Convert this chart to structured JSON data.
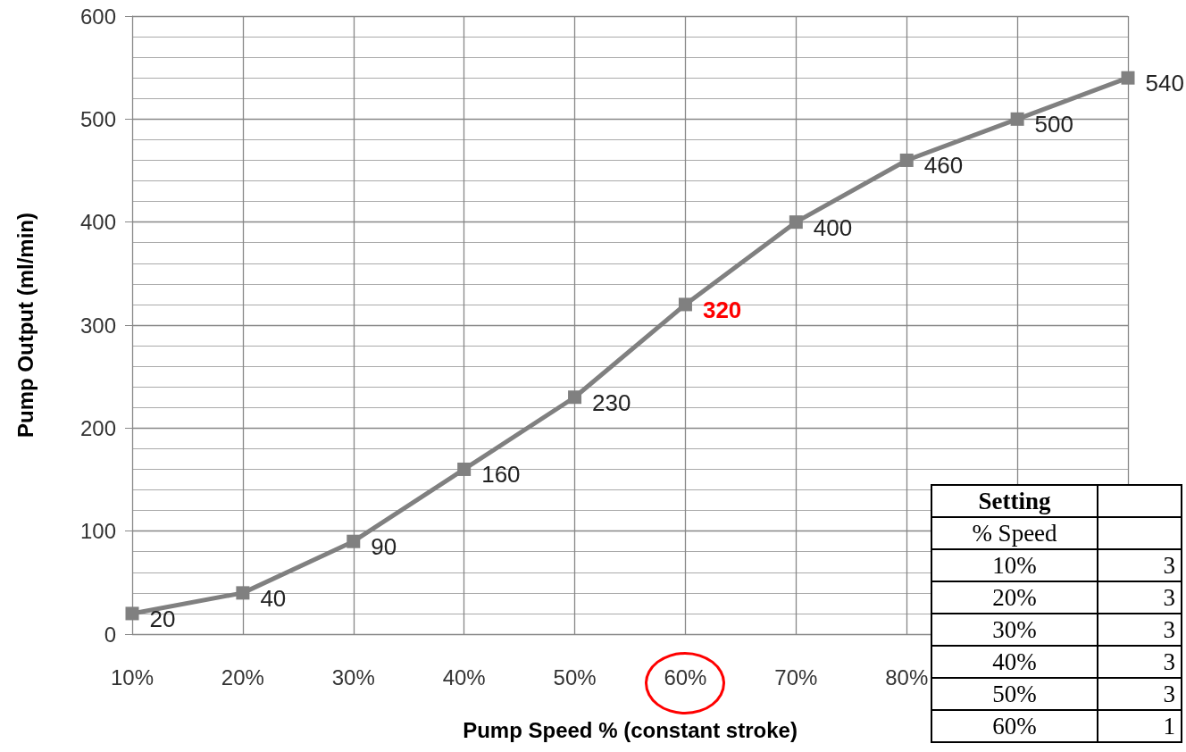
{
  "chart_data": {
    "type": "line",
    "xlabel": "Pump Speed % (constant stroke)",
    "ylabel": "Pump Output (ml/min)",
    "categories": [
      "10%",
      "20%",
      "30%",
      "40%",
      "50%",
      "60%",
      "70%",
      "80%",
      null,
      null
    ],
    "series": [
      {
        "color": "#808080",
        "values": [
          20,
          40,
          90,
          160,
          230,
          320,
          400,
          460,
          500,
          540
        ],
        "value_labels": [
          "20",
          "40",
          "90",
          "160",
          "230",
          null,
          "400",
          "460",
          "500",
          "540"
        ]
      }
    ],
    "ylim": [
      0,
      600
    ],
    "yticks": [
      0,
      100,
      200,
      300,
      400,
      500,
      600
    ],
    "grid": true,
    "marker": "square",
    "line_style": "solid",
    "annotations": [
      {
        "text": "320",
        "x": "60%",
        "y": 320
      },
      "Setting",
      "% Speed",
      "10%",
      "3",
      "20%",
      "3",
      "30%",
      "3",
      "40%",
      "3",
      "50%",
      "3",
      "60%",
      "1"
    ]
  }
}
